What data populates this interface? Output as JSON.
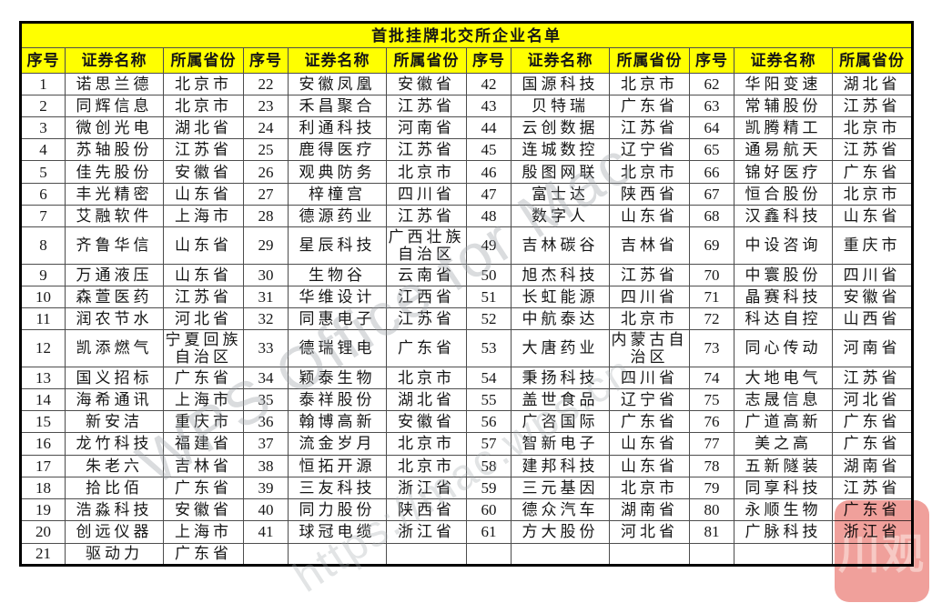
{
  "title": "首批挂牌北交所企业名单",
  "header": {
    "seq": "序号",
    "name": "证券名称",
    "province": "所属省份"
  },
  "group_count": 4,
  "colors": {
    "header_bg": "#ffff00",
    "border": "#000000",
    "text": "#161616",
    "badge_pink": "#f0a09b",
    "badge_glyph_pink": "#f7c9c4",
    "watermark_gray": "#9ea3a8"
  },
  "watermarks": {
    "wps_text": "WPS Office for Mac",
    "wps_url": "https://mac.wps.cn",
    "corner_badge": "川观"
  },
  "rows": [
    {
      "tall": false,
      "cells": [
        [
          "1",
          "诺思兰德",
          "北京市"
        ],
        [
          "22",
          "安徽凤凰",
          "安徽省"
        ],
        [
          "42",
          "国源科技",
          "北京市"
        ],
        [
          "62",
          "华阳变速",
          "湖北省"
        ]
      ]
    },
    {
      "tall": false,
      "cells": [
        [
          "2",
          "同辉信息",
          "北京市"
        ],
        [
          "23",
          "禾昌聚合",
          "江苏省"
        ],
        [
          "43",
          "贝特瑞",
          "广东省"
        ],
        [
          "63",
          "常辅股份",
          "江苏省"
        ]
      ]
    },
    {
      "tall": false,
      "cells": [
        [
          "3",
          "微创光电",
          "湖北省"
        ],
        [
          "24",
          "利通科技",
          "河南省"
        ],
        [
          "44",
          "云创数据",
          "江苏省"
        ],
        [
          "64",
          "凯腾精工",
          "北京市"
        ]
      ]
    },
    {
      "tall": false,
      "cells": [
        [
          "4",
          "苏轴股份",
          "江苏省"
        ],
        [
          "25",
          "鹿得医疗",
          "江苏省"
        ],
        [
          "45",
          "连城数控",
          "辽宁省"
        ],
        [
          "65",
          "通易航天",
          "江苏省"
        ]
      ]
    },
    {
      "tall": false,
      "cells": [
        [
          "5",
          "佳先股份",
          "安徽省"
        ],
        [
          "26",
          "观典防务",
          "北京市"
        ],
        [
          "46",
          "殷图网联",
          "北京市"
        ],
        [
          "66",
          "锦好医疗",
          "广东省"
        ]
      ]
    },
    {
      "tall": false,
      "cells": [
        [
          "6",
          "丰光精密",
          "山东省"
        ],
        [
          "27",
          "梓橦宫",
          "四川省"
        ],
        [
          "47",
          "富士达",
          "陕西省"
        ],
        [
          "67",
          "恒合股份",
          "北京市"
        ]
      ]
    },
    {
      "tall": false,
      "cells": [
        [
          "7",
          "艾融软件",
          "上海市"
        ],
        [
          "28",
          "德源药业",
          "江苏省"
        ],
        [
          "48",
          "数字人",
          "山东省"
        ],
        [
          "68",
          "汉鑫科技",
          "山东省"
        ]
      ]
    },
    {
      "tall": true,
      "cells": [
        [
          "8",
          "齐鲁华信",
          "山东省"
        ],
        [
          "29",
          "星辰科技",
          "广西壮族自治区"
        ],
        [
          "49",
          "吉林碳谷",
          "吉林省"
        ],
        [
          "69",
          "中设咨询",
          "重庆市"
        ]
      ]
    },
    {
      "tall": false,
      "cells": [
        [
          "9",
          "万通液压",
          "山东省"
        ],
        [
          "30",
          "生物谷",
          "云南省"
        ],
        [
          "50",
          "旭杰科技",
          "江苏省"
        ],
        [
          "70",
          "中寰股份",
          "四川省"
        ]
      ]
    },
    {
      "tall": false,
      "cells": [
        [
          "10",
          "森萱医药",
          "江苏省"
        ],
        [
          "31",
          "华维设计",
          "江西省"
        ],
        [
          "51",
          "长虹能源",
          "四川省"
        ],
        [
          "71",
          "晶赛科技",
          "安徽省"
        ]
      ]
    },
    {
      "tall": false,
      "cells": [
        [
          "11",
          "润农节水",
          "河北省"
        ],
        [
          "32",
          "同惠电子",
          "江苏省"
        ],
        [
          "52",
          "中航泰达",
          "北京市"
        ],
        [
          "72",
          "科达自控",
          "山西省"
        ]
      ]
    },
    {
      "tall": true,
      "cells": [
        [
          "12",
          "凯添燃气",
          "宁夏回族自治区"
        ],
        [
          "33",
          "德瑞锂电",
          "广东省"
        ],
        [
          "53",
          "大唐药业",
          "内蒙古自治区"
        ],
        [
          "73",
          "同心传动",
          "河南省"
        ]
      ]
    },
    {
      "tall": false,
      "cells": [
        [
          "13",
          "国义招标",
          "广东省"
        ],
        [
          "34",
          "颖泰生物",
          "北京市"
        ],
        [
          "54",
          "秉扬科技",
          "四川省"
        ],
        [
          "74",
          "大地电气",
          "江苏省"
        ]
      ]
    },
    {
      "tall": false,
      "cells": [
        [
          "14",
          "海希通讯",
          "上海市"
        ],
        [
          "35",
          "泰祥股份",
          "湖北省"
        ],
        [
          "55",
          "盖世食品",
          "辽宁省"
        ],
        [
          "75",
          "志晟信息",
          "河北省"
        ]
      ]
    },
    {
      "tall": false,
      "cells": [
        [
          "15",
          "新安洁",
          "重庆市"
        ],
        [
          "36",
          "翰博高新",
          "安徽省"
        ],
        [
          "56",
          "广咨国际",
          "广东省"
        ],
        [
          "76",
          "广道高新",
          "广东省"
        ]
      ]
    },
    {
      "tall": false,
      "cells": [
        [
          "16",
          "龙竹科技",
          "福建省"
        ],
        [
          "37",
          "流金岁月",
          "北京市"
        ],
        [
          "57",
          "智新电子",
          "山东省"
        ],
        [
          "77",
          "美之高",
          "广东省"
        ]
      ]
    },
    {
      "tall": false,
      "cells": [
        [
          "17",
          "朱老六",
          "吉林省"
        ],
        [
          "38",
          "恒拓开源",
          "北京市"
        ],
        [
          "58",
          "建邦科技",
          "山东省"
        ],
        [
          "78",
          "五新隧装",
          "湖南省"
        ]
      ]
    },
    {
      "tall": false,
      "cells": [
        [
          "18",
          "拾比佰",
          "广东省"
        ],
        [
          "39",
          "三友科技",
          "浙江省"
        ],
        [
          "59",
          "三元基因",
          "北京市"
        ],
        [
          "79",
          "同享科技",
          "江苏省"
        ]
      ]
    },
    {
      "tall": false,
      "cells": [
        [
          "19",
          "浩淼科技",
          "安徽省"
        ],
        [
          "40",
          "同力股份",
          "陕西省"
        ],
        [
          "60",
          "德众汽车",
          "湖南省"
        ],
        [
          "80",
          "永顺生物",
          "广东省"
        ]
      ]
    },
    {
      "tall": false,
      "cells": [
        [
          "20",
          "创远仪器",
          "上海市"
        ],
        [
          "41",
          "球冠电缆",
          "浙江省"
        ],
        [
          "61",
          "方大股份",
          "河北省"
        ],
        [
          "81",
          "广脉科技",
          "浙江省"
        ]
      ]
    },
    {
      "tall": false,
      "cells": [
        [
          "21",
          "驱动力",
          "广东省"
        ],
        [
          "",
          "",
          ""
        ],
        [
          "",
          "",
          ""
        ],
        [
          "",
          "",
          ""
        ]
      ]
    }
  ]
}
